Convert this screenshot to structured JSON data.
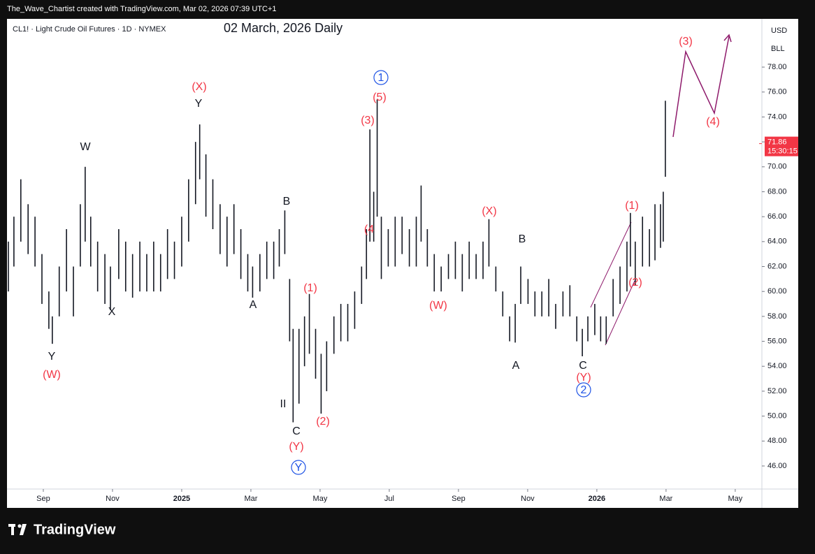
{
  "header": {
    "credit": "The_Wave_Chartist created with TradingView.com, Mar 02, 2026 07:39 UTC+1",
    "brand": "TradingView"
  },
  "chart_data": {
    "type": "ohlc",
    "symbol": "CL1! · Light Crude Oil Futures · 1D · NYMEX",
    "title": "02 March, 2026 Daily",
    "currency": "USD",
    "unit": "BLL",
    "color": "#131722",
    "x": [
      -1.01,
      -0.85,
      -0.65,
      -0.44,
      -0.24,
      -0.04,
      0.16,
      0.26,
      0.46,
      0.67,
      0.87,
      1.07,
      1.21,
      1.37,
      1.57,
      1.78,
      1.94,
      2.18,
      2.38,
      2.58,
      2.79,
      2.99,
      3.19,
      3.39,
      3.59,
      3.79,
      4.0,
      4.2,
      4.4,
      4.52,
      4.7,
      4.9,
      5.11,
      5.31,
      5.51,
      5.71,
      5.91,
      6.05,
      6.26,
      6.46,
      6.66,
      6.82,
      6.98,
      7.12,
      7.22,
      7.39,
      7.55,
      7.69,
      7.87,
      8.03,
      8.19,
      8.4,
      8.6,
      8.8,
      9.0,
      9.2,
      9.34,
      9.44,
      9.55,
      9.65,
      9.77,
      9.97,
      10.17,
      10.37,
      10.58,
      10.78,
      10.92,
      11.1,
      11.3,
      11.5,
      11.71,
      11.91,
      12.11,
      12.31,
      12.51,
      12.71,
      12.88,
      13.08,
      13.28,
      13.48,
      13.64,
      13.8,
      14.01,
      14.21,
      14.41,
      14.61,
      14.81,
      15.02,
      15.22,
      15.42,
      15.58,
      15.74,
      15.94,
      16.11,
      16.27,
      16.47,
      16.67,
      16.87,
      16.97,
      17.11,
      17.32,
      17.52,
      17.68,
      17.84,
      17.92,
      17.98
    ],
    "high": [
      64,
      66,
      69,
      67,
      66,
      63,
      60,
      58,
      62,
      65,
      62,
      67,
      70,
      66,
      64,
      63,
      62,
      65,
      64,
      63,
      64,
      63,
      64,
      63,
      65,
      64,
      66,
      69,
      72,
      73.4,
      71,
      69,
      67,
      66,
      67,
      65,
      63,
      62,
      63,
      64,
      64,
      65,
      66.5,
      61,
      57,
      57,
      58,
      59.8,
      57,
      55,
      56,
      58,
      59,
      59,
      60,
      62,
      65,
      73,
      68,
      75.4,
      66,
      65,
      66,
      66,
      65,
      66,
      68.5,
      65,
      63,
      62,
      63,
      64,
      63,
      64,
      63,
      64,
      65.8,
      62,
      60,
      58,
      59,
      62,
      61,
      60,
      60,
      61,
      59,
      60,
      60.5,
      58,
      57,
      58,
      59,
      58,
      58,
      61,
      62,
      64,
      66.3,
      64,
      66,
      65,
      67,
      67,
      68,
      75.3
    ],
    "low": [
      60,
      62,
      64,
      63,
      62,
      59,
      57,
      55.8,
      58,
      60,
      58,
      62,
      64,
      62,
      60,
      59,
      58.5,
      61,
      60,
      59.5,
      60,
      60,
      60,
      60,
      61,
      61,
      62,
      64,
      67,
      69,
      66,
      65,
      63,
      62,
      63,
      61,
      60,
      59.5,
      60,
      61,
      61,
      62,
      63,
      56,
      49.5,
      51,
      54,
      55,
      53,
      50.2,
      52,
      55,
      56,
      56,
      57,
      59,
      61,
      64,
      64,
      66,
      61,
      62,
      62,
      63,
      62,
      62,
      64,
      62,
      60,
      60,
      61,
      61,
      60,
      61,
      61,
      61,
      62,
      60,
      58,
      56,
      55.9,
      59,
      59,
      58,
      58,
      58,
      57,
      58,
      58,
      56,
      54.8,
      56,
      56.5,
      56,
      55.8,
      58,
      59,
      60,
      62,
      60.5,
      62,
      62,
      62.5,
      63.5,
      64,
      69.2
    ],
    "last_price": 71.86,
    "last_price_color": "#f23645",
    "countdown": "15:30:15",
    "xlim": [
      -1.05,
      20.77
    ],
    "ylim": [
      44.15,
      81.87
    ],
    "xticks": [
      {
        "value": 0,
        "label": "Sep"
      },
      {
        "value": 2,
        "label": "Nov"
      },
      {
        "value": 4,
        "label": "2025"
      },
      {
        "value": 6,
        "label": "Mar"
      },
      {
        "value": 8,
        "label": "May"
      },
      {
        "value": 10,
        "label": "Jul"
      },
      {
        "value": 12,
        "label": "Sep"
      },
      {
        "value": 14,
        "label": "Nov"
      },
      {
        "value": 16,
        "label": "2026"
      },
      {
        "value": 18,
        "label": "Mar"
      },
      {
        "value": 20,
        "label": "May"
      }
    ],
    "yticks": [
      {
        "value": 46,
        "label": "46.00"
      },
      {
        "value": 48,
        "label": "48.00"
      },
      {
        "value": 50,
        "label": "50.00"
      },
      {
        "value": 52,
        "label": "52.00"
      },
      {
        "value": 54,
        "label": "54.00"
      },
      {
        "value": 56,
        "label": "56.00"
      },
      {
        "value": 58,
        "label": "58.00"
      },
      {
        "value": 60,
        "label": "60.00"
      },
      {
        "value": 62,
        "label": "62.00"
      },
      {
        "value": 64,
        "label": "64.00"
      },
      {
        "value": 66,
        "label": "66.00"
      },
      {
        "value": 68,
        "label": "68.00"
      },
      {
        "value": 70,
        "label": "70.00"
      },
      {
        "value": 72,
        "label": "72.00"
      },
      {
        "value": 74,
        "label": "74.00"
      },
      {
        "value": 76,
        "label": "76.00"
      },
      {
        "value": 78,
        "label": "78.00"
      }
    ],
    "annotations": [
      {
        "text": "W",
        "color": "#131722"
      },
      {
        "text": "X",
        "color": "#131722"
      },
      {
        "text": "Y",
        "color": "#131722"
      },
      {
        "text": "Y",
        "color": "#131722"
      },
      {
        "text": "A",
        "color": "#131722"
      },
      {
        "text": "B",
        "color": "#131722"
      },
      {
        "text": "II",
        "color": "#131722"
      },
      {
        "text": "C",
        "color": "#131722"
      },
      {
        "text": "A",
        "color": "#131722"
      },
      {
        "text": "B",
        "color": "#131722"
      },
      {
        "text": "C",
        "color": "#131722"
      },
      {
        "text": "(W)",
        "color": "#f23645"
      },
      {
        "text": "(X)",
        "color": "#f23645"
      },
      {
        "text": "(Y)",
        "color": "#f23645"
      },
      {
        "text": "(1)",
        "color": "#f23645"
      },
      {
        "text": "(2)",
        "color": "#f23645"
      },
      {
        "text": "(3)",
        "color": "#f23645"
      },
      {
        "text": "(5)",
        "color": "#f23645"
      },
      {
        "text": "(4",
        "color": "#f23645"
      },
      {
        "text": "(W)",
        "color": "#f23645"
      },
      {
        "text": "(X)",
        "color": "#f23645"
      },
      {
        "text": "(Y)",
        "color": "#f23645"
      },
      {
        "text": "(1)",
        "color": "#f23645"
      },
      {
        "text": "(2)",
        "color": "#f23645"
      },
      {
        "text": "(3)",
        "color": "#f23645"
      },
      {
        "text": "(4)",
        "color": "#f23645"
      },
      {
        "text": "1",
        "color": "#1e53e5",
        "circled": true
      },
      {
        "text": "Y",
        "color": "#1e53e5",
        "circled": true
      },
      {
        "text": "2",
        "color": "#1e53e5",
        "circled": true
      }
    ]
  }
}
